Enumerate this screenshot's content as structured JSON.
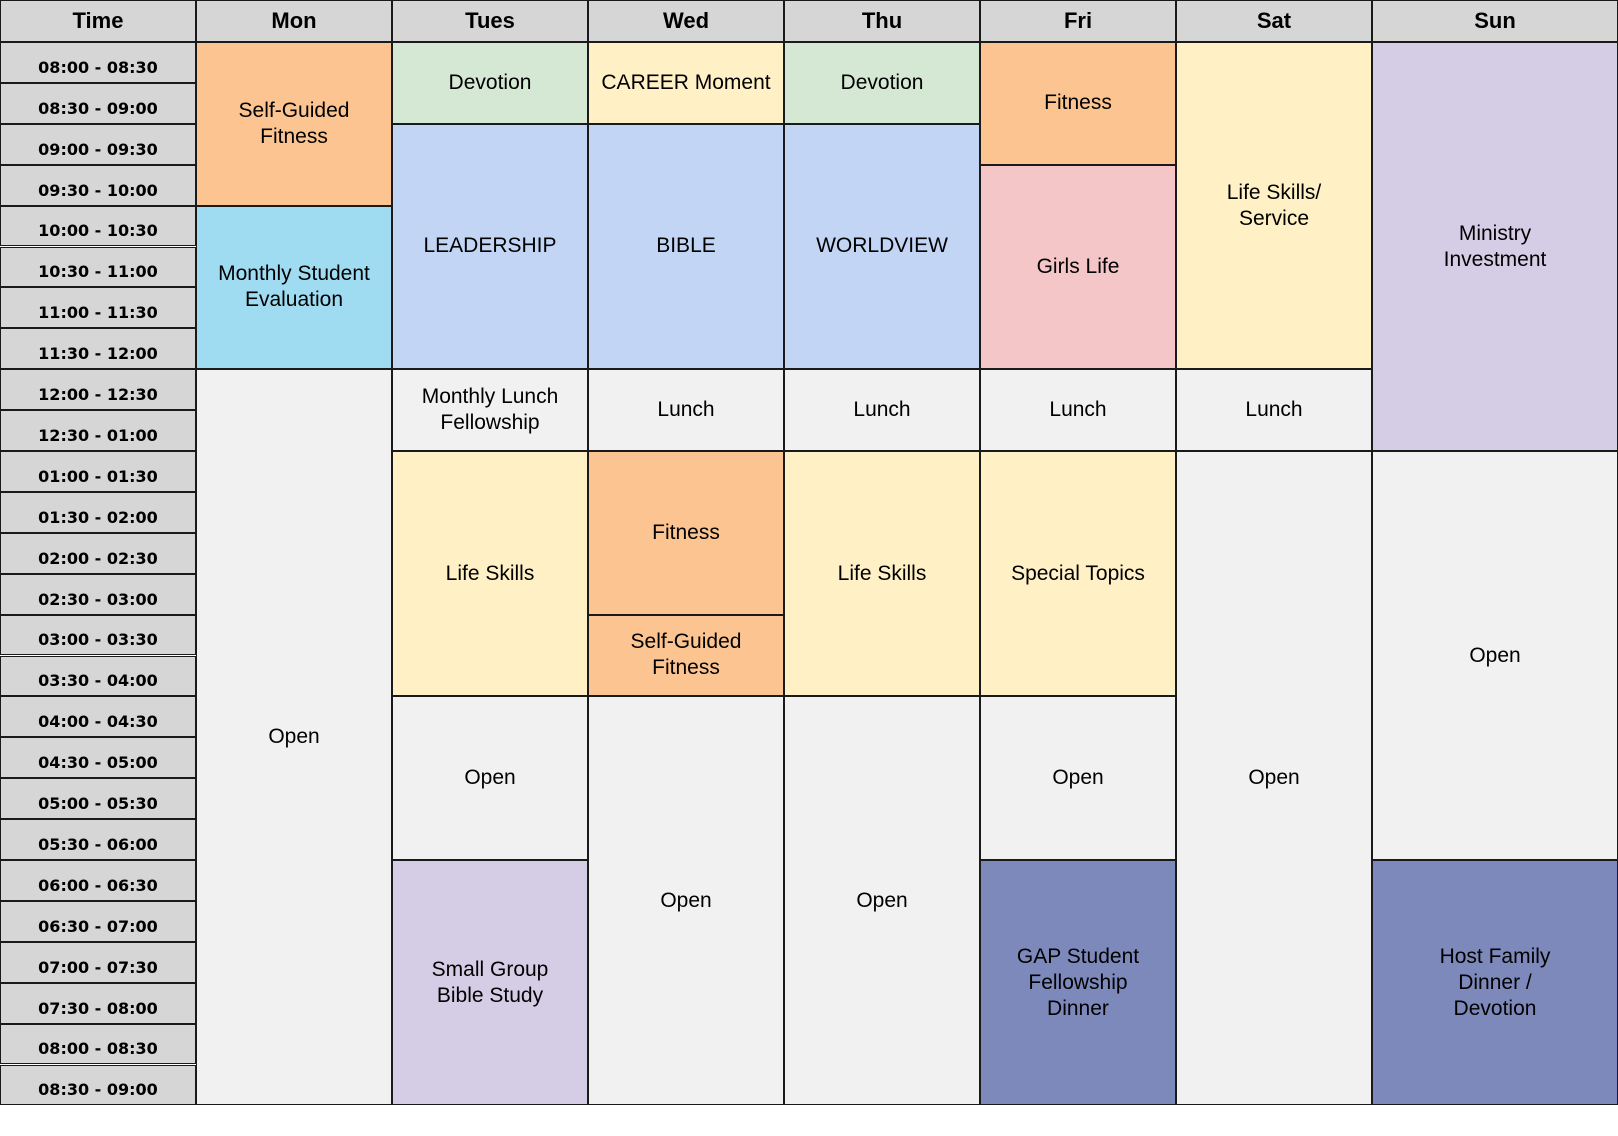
{
  "schedule": {
    "headers": [
      "Time",
      "Mon",
      "Tues",
      "Wed",
      "Thu",
      "Fri",
      "Sat",
      "Sun"
    ],
    "time_slots": [
      "08:00 - 08:30",
      "08:30 - 09:00",
      "09:00 - 09:30",
      "09:30 - 10:00",
      "10:00 - 10:30",
      "10:30 - 11:00",
      "11:00 - 11:30",
      "11:30 - 12:00",
      "12:00 - 12:30",
      "12:30 - 01:00",
      "01:00 - 01:30",
      "01:30 - 02:00",
      "02:00 - 02:30",
      "02:30 - 03:00",
      "03:00 - 03:30",
      "03:30 - 04:00",
      "04:00 - 04:30",
      "04:30 - 05:00",
      "05:00 - 05:30",
      "05:30 - 06:00",
      "06:00 - 06:30",
      "06:30 - 07:00",
      "07:00 - 07:30",
      "07:30 - 08:00",
      "08:00 - 08:30",
      "08:30 - 09:00"
    ],
    "category_colors": {
      "fitness": "#fbc491",
      "evaluation": "#9fdbf1",
      "devotion": "#d5e8d4",
      "career": "#fff0c6",
      "class": "#c2d5f5",
      "girls_life": "#f5c6c8",
      "life_skills": "#fff0c6",
      "ministry": "#d5cde6",
      "open": "#f1f1f1",
      "small_group": "#d5cde6",
      "dinner": "#7d89bb"
    },
    "events": [
      {
        "day": "Mon",
        "start": "08:00",
        "end": "10:00",
        "label": "Self-Guided\nFitness",
        "category": "fitness"
      },
      {
        "day": "Mon",
        "start": "10:00",
        "end": "12:00",
        "label": "Monthly Student\nEvaluation",
        "category": "evaluation"
      },
      {
        "day": "Mon",
        "start": "12:00",
        "end": "09:00 PM",
        "label": "Open",
        "category": "open"
      },
      {
        "day": "Tues",
        "start": "08:00",
        "end": "09:00",
        "label": "Devotion",
        "category": "devotion"
      },
      {
        "day": "Tues",
        "start": "09:00",
        "end": "12:00",
        "label": "LEADERSHIP",
        "category": "class"
      },
      {
        "day": "Tues",
        "start": "12:00",
        "end": "01:00",
        "label": "Monthly Lunch\nFellowship",
        "category": "open"
      },
      {
        "day": "Tues",
        "start": "01:00",
        "end": "04:00",
        "label": "Life Skills",
        "category": "life_skills"
      },
      {
        "day": "Tues",
        "start": "04:00",
        "end": "06:00",
        "label": "Open",
        "category": "open"
      },
      {
        "day": "Tues",
        "start": "06:00",
        "end": "09:00 PM",
        "label": "Small Group\nBible Study",
        "category": "small_group"
      },
      {
        "day": "Wed",
        "start": "08:00",
        "end": "09:00",
        "label": "CAREER Moment",
        "category": "career"
      },
      {
        "day": "Wed",
        "start": "09:00",
        "end": "12:00",
        "label": "BIBLE",
        "category": "class"
      },
      {
        "day": "Wed",
        "start": "12:00",
        "end": "01:00",
        "label": "Lunch",
        "category": "open"
      },
      {
        "day": "Wed",
        "start": "01:00",
        "end": "03:00",
        "label": "Fitness",
        "category": "fitness"
      },
      {
        "day": "Wed",
        "start": "03:00",
        "end": "04:00",
        "label": "Self-Guided\nFitness",
        "category": "fitness"
      },
      {
        "day": "Wed",
        "start": "04:00",
        "end": "09:00 PM",
        "label": "Open",
        "category": "open"
      },
      {
        "day": "Thu",
        "start": "08:00",
        "end": "09:00",
        "label": "Devotion",
        "category": "devotion"
      },
      {
        "day": "Thu",
        "start": "09:00",
        "end": "12:00",
        "label": "WORLDVIEW",
        "category": "class"
      },
      {
        "day": "Thu",
        "start": "12:00",
        "end": "01:00",
        "label": "Lunch",
        "category": "open"
      },
      {
        "day": "Thu",
        "start": "01:00",
        "end": "04:00",
        "label": "Life Skills",
        "category": "life_skills"
      },
      {
        "day": "Thu",
        "start": "04:00",
        "end": "09:00 PM",
        "label": "Open",
        "category": "open"
      },
      {
        "day": "Fri",
        "start": "08:00",
        "end": "09:30",
        "label": "Fitness",
        "category": "fitness"
      },
      {
        "day": "Fri",
        "start": "09:30",
        "end": "12:00",
        "label": "Girls Life",
        "category": "girls_life"
      },
      {
        "day": "Fri",
        "start": "12:00",
        "end": "01:00",
        "label": "Lunch",
        "category": "open"
      },
      {
        "day": "Fri",
        "start": "01:00",
        "end": "04:00",
        "label": "Special Topics",
        "category": "life_skills"
      },
      {
        "day": "Fri",
        "start": "04:00",
        "end": "06:00",
        "label": "Open",
        "category": "open"
      },
      {
        "day": "Fri",
        "start": "06:00",
        "end": "09:00 PM",
        "label": "GAP Student\nFellowship\nDinner",
        "category": "dinner"
      },
      {
        "day": "Sat",
        "start": "08:00",
        "end": "12:00",
        "label": "Life Skills/\nService",
        "category": "life_skills"
      },
      {
        "day": "Sat",
        "start": "12:00",
        "end": "01:00",
        "label": "Lunch",
        "category": "open"
      },
      {
        "day": "Sat",
        "start": "01:00",
        "end": "09:00 PM",
        "label": "Open",
        "category": "open"
      },
      {
        "day": "Sun",
        "start": "08:00",
        "end": "01:00",
        "label": "Ministry\nInvestment",
        "category": "ministry"
      },
      {
        "day": "Sun",
        "start": "01:00",
        "end": "06:00",
        "label": "Open",
        "category": "open"
      },
      {
        "day": "Sun",
        "start": "06:00",
        "end": "09:00 PM",
        "label": "Host Family\nDinner /\nDevotion",
        "category": "dinner"
      }
    ]
  }
}
